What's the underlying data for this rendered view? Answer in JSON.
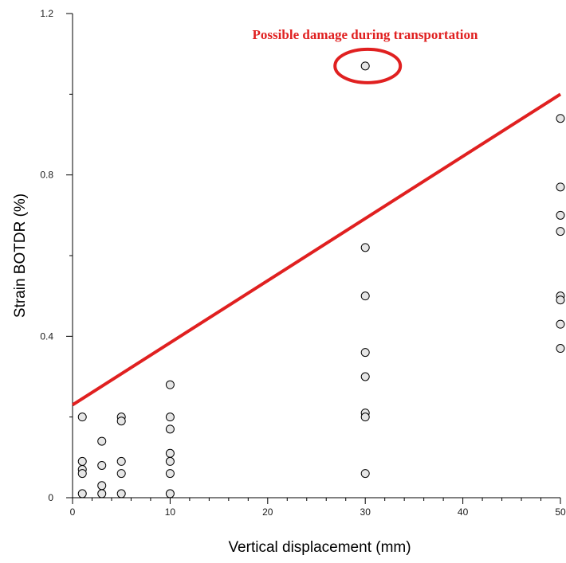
{
  "chart_data": {
    "type": "scatter",
    "title": "",
    "xlabel": "Vertical displacement (mm)",
    "ylabel": "Strain BOTDR (%)",
    "xlim": [
      0,
      50
    ],
    "ylim": [
      0,
      1.2
    ],
    "x_ticks": [
      0,
      10,
      20,
      30,
      40,
      50
    ],
    "x_minor_ticks": [
      2,
      4,
      6,
      8,
      12,
      14,
      16,
      18,
      22,
      24,
      26,
      28,
      32,
      34,
      36,
      38,
      42,
      44,
      46,
      48
    ],
    "y_ticks": [
      0,
      0.4,
      0.8,
      1.2
    ],
    "y_tick_labels": [
      "0",
      "0.4",
      "0.8",
      "1.2"
    ],
    "y_minor_ticks": [
      0.2,
      0.6,
      1.0
    ],
    "grid": false,
    "points": [
      {
        "x": 1,
        "y": 0.2
      },
      {
        "x": 1,
        "y": 0.09
      },
      {
        "x": 1,
        "y": 0.07
      },
      {
        "x": 1,
        "y": 0.06
      },
      {
        "x": 1,
        "y": 0.01
      },
      {
        "x": 3,
        "y": 0.14
      },
      {
        "x": 3,
        "y": 0.08
      },
      {
        "x": 3,
        "y": 0.03
      },
      {
        "x": 3,
        "y": 0.01
      },
      {
        "x": 5,
        "y": 0.2
      },
      {
        "x": 5,
        "y": 0.19
      },
      {
        "x": 5,
        "y": 0.09
      },
      {
        "x": 5,
        "y": 0.06
      },
      {
        "x": 5,
        "y": 0.01
      },
      {
        "x": 10,
        "y": 0.28
      },
      {
        "x": 10,
        "y": 0.2
      },
      {
        "x": 10,
        "y": 0.17
      },
      {
        "x": 10,
        "y": 0.11
      },
      {
        "x": 10,
        "y": 0.09
      },
      {
        "x": 10,
        "y": 0.06
      },
      {
        "x": 10,
        "y": 0.01
      },
      {
        "x": 30,
        "y": 1.07
      },
      {
        "x": 30,
        "y": 0.62
      },
      {
        "x": 30,
        "y": 0.5
      },
      {
        "x": 30,
        "y": 0.36
      },
      {
        "x": 30,
        "y": 0.3
      },
      {
        "x": 30,
        "y": 0.21
      },
      {
        "x": 30,
        "y": 0.2
      },
      {
        "x": 30,
        "y": 0.06
      },
      {
        "x": 50,
        "y": 0.94
      },
      {
        "x": 50,
        "y": 0.77
      },
      {
        "x": 50,
        "y": 0.7
      },
      {
        "x": 50,
        "y": 0.66
      },
      {
        "x": 50,
        "y": 0.5
      },
      {
        "x": 50,
        "y": 0.49
      },
      {
        "x": 50,
        "y": 0.43
      },
      {
        "x": 50,
        "y": 0.37
      }
    ],
    "trend_line": {
      "x": [
        0,
        50
      ],
      "y": [
        0.23,
        1.0
      ],
      "color": "#e02020"
    },
    "annotation": {
      "text": "Possible damage during transportation",
      "target": {
        "x": 30,
        "y": 1.07
      },
      "color": "#e02020"
    },
    "colors": {
      "marker_fill": "#e6e6e6",
      "marker_stroke": "#000000",
      "axis": "#000000"
    }
  }
}
